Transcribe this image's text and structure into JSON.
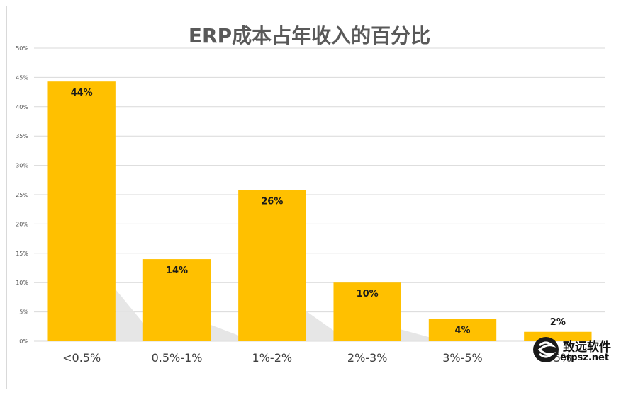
{
  "chart_data": {
    "type": "bar",
    "title": "ERP成本占年收入的百分比",
    "categories": [
      "<0.5%",
      "0.5%-1%",
      "1%-2%",
      "2%-3%",
      "3%-5%",
      ">5%"
    ],
    "values": [
      44.3,
      14.0,
      25.8,
      10.0,
      3.8,
      1.6
    ],
    "data_labels": [
      "44%",
      "14%",
      "26%",
      "10%",
      "4%",
      "2%"
    ],
    "ylim": [
      0,
      50
    ],
    "yticks": [
      "0%",
      "5%",
      "10%",
      "15%",
      "20%",
      "25%",
      "30%",
      "35%",
      "40%",
      "45%",
      "50%"
    ],
    "grid": true,
    "bar_color": "#FFC000"
  },
  "watermark": {
    "name": "致远软件",
    "url": "erpsz.net"
  }
}
